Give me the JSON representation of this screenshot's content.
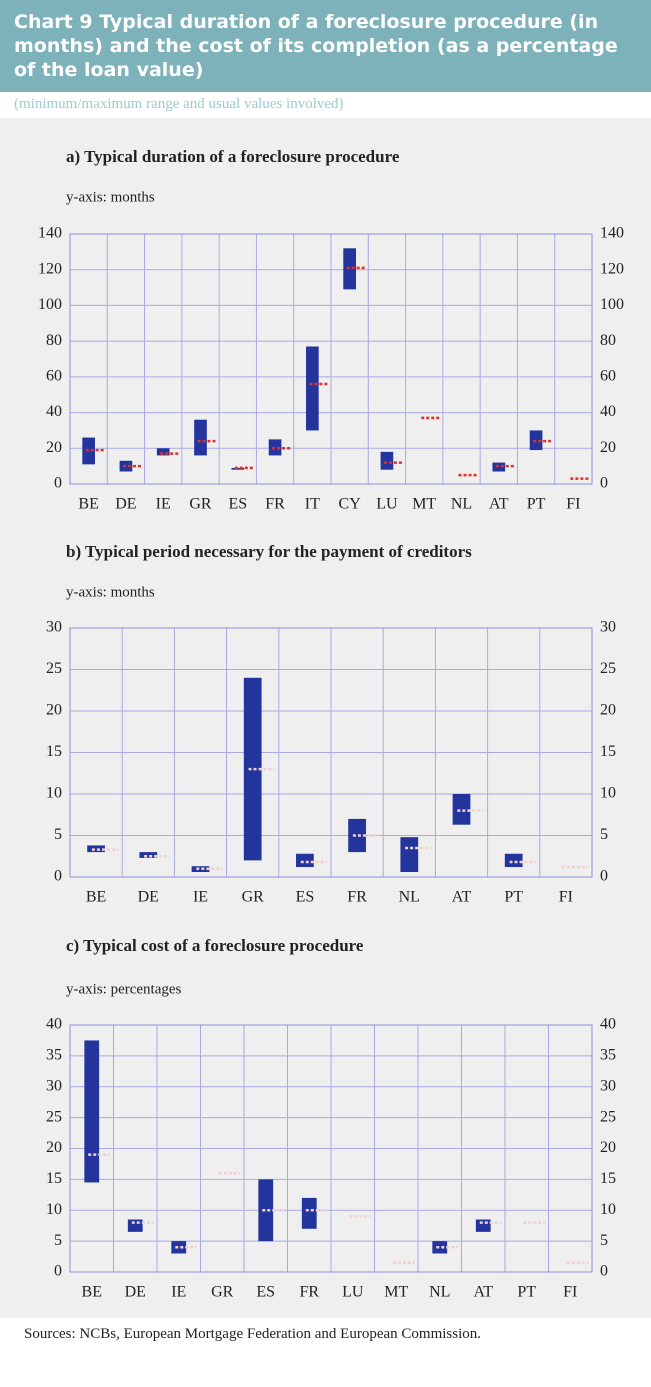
{
  "header": {
    "title": "Chart 9 Typical duration of a foreclosure procedure (in months) and the cost of its completion (as a percentage of the loan value)",
    "subtitle": "(minimum/maximum range and usual values involved)"
  },
  "chart_data": [
    {
      "type": "range",
      "title": "a) Typical duration of a foreclosure procedure",
      "y_label": "y-axis: months",
      "categories": [
        "BE",
        "DE",
        "IE",
        "GR",
        "ES",
        "FR",
        "IT",
        "CY",
        "LU",
        "MT",
        "NL",
        "AT",
        "PT",
        "FI"
      ],
      "low": [
        11,
        7,
        16,
        16,
        8,
        16,
        30,
        109,
        8,
        null,
        null,
        7,
        19,
        null
      ],
      "high": [
        26,
        13,
        20,
        36,
        9,
        25,
        77,
        132,
        18,
        null,
        null,
        12,
        30,
        null
      ],
      "usual": [
        19,
        10,
        17,
        24,
        9,
        20,
        56,
        121,
        12,
        37,
        5,
        10,
        24,
        3
      ],
      "ylim": [
        0,
        140
      ],
      "yticks": [
        0,
        20,
        40,
        60,
        80,
        100,
        120,
        140
      ],
      "grid": true,
      "range_color": "#23349c",
      "usual_color": "#e0302a"
    },
    {
      "type": "range",
      "title": "b) Typical period necessary for the payment of creditors",
      "y_label": "y-axis: months",
      "categories": [
        "BE",
        "DE",
        "IE",
        "GR",
        "ES",
        "FR",
        "NL",
        "AT",
        "PT",
        "FI"
      ],
      "low": [
        3,
        2.3,
        0.6,
        2,
        1.2,
        3,
        0.6,
        6.3,
        1.2,
        null
      ],
      "high": [
        3.8,
        3,
        1.3,
        24,
        2.8,
        7,
        4.8,
        10,
        2.8,
        null
      ],
      "usual": [
        3.3,
        2.5,
        1,
        13,
        1.8,
        5,
        3.5,
        8,
        1.8,
        1.2
      ],
      "ylim": [
        0,
        30
      ],
      "yticks": [
        0,
        5,
        10,
        15,
        20,
        25,
        30
      ],
      "grid": true,
      "range_color": "#23349c",
      "usual_color": "#f4d0d0"
    },
    {
      "type": "range",
      "title": "c) Typical cost of a foreclosure procedure",
      "y_label": "y-axis: percentages",
      "categories": [
        "BE",
        "DE",
        "IE",
        "GR",
        "ES",
        "FR",
        "LU",
        "MT",
        "NL",
        "AT",
        "PT",
        "FI"
      ],
      "low": [
        14.5,
        6.5,
        3,
        null,
        5,
        7,
        null,
        null,
        3,
        6.5,
        null,
        null
      ],
      "high": [
        37.5,
        8.5,
        5,
        null,
        15,
        12,
        null,
        null,
        5,
        8.5,
        null,
        null
      ],
      "usual": [
        19,
        8,
        4,
        16,
        10,
        10,
        9,
        1.5,
        4,
        8,
        8,
        1.5
      ],
      "ylim": [
        0,
        40
      ],
      "yticks": [
        0,
        5,
        10,
        15,
        20,
        25,
        30,
        35,
        40
      ],
      "grid": true,
      "range_color": "#23349c",
      "usual_color": "#f4d0d0"
    }
  ],
  "source": "Sources: NCBs, European Mortgage Federation and European Commission."
}
